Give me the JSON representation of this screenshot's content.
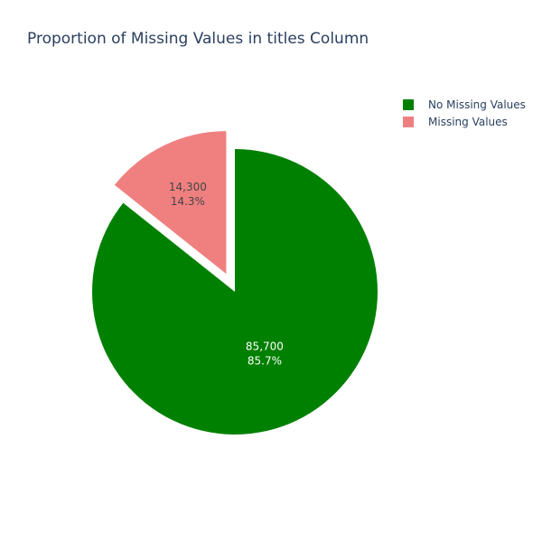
{
  "chart_data": {
    "type": "pie",
    "title": "Proportion of Missing Values in titles Column",
    "labels": [
      "No Missing Values",
      "Missing Values"
    ],
    "values": [
      85700,
      14300
    ],
    "value_labels": [
      "85,700",
      "14,300"
    ],
    "percent_labels": [
      "85.7%",
      "14.3%"
    ],
    "colors": [
      "#008000",
      "#f08080"
    ],
    "pulled": [
      false,
      true
    ],
    "text_colors": [
      "#ffffff",
      "#444444"
    ],
    "legend_position": "top-right",
    "direction": "clockwise",
    "start": "top"
  }
}
